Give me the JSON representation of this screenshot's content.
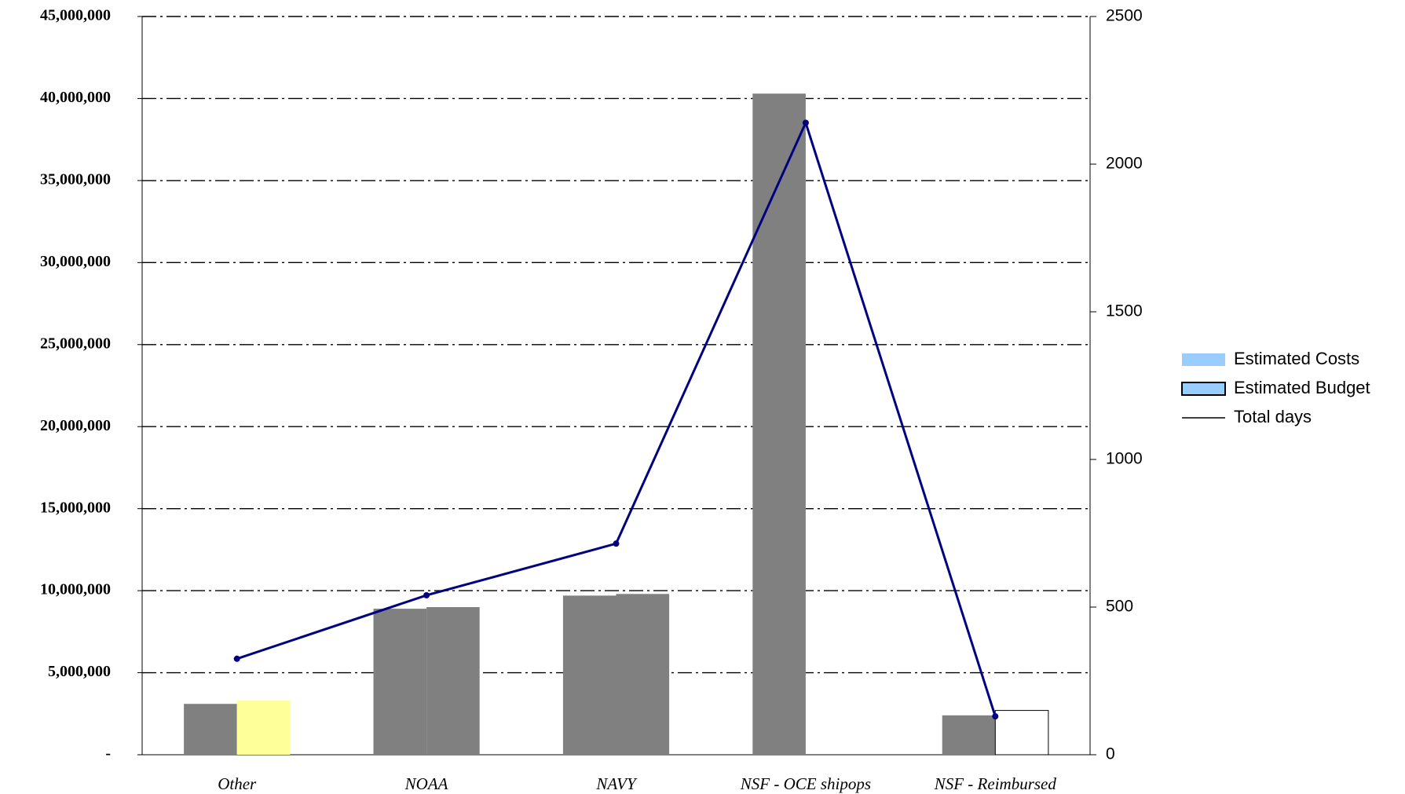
{
  "chart_data": {
    "type": "bar-line",
    "categories": [
      "Other",
      "NOAA",
      "NAVY",
      "NSF - OCE shipops",
      "NSF - Reimbursed"
    ],
    "series": [
      {
        "name": "Estimated Costs",
        "color": "#99ccff",
        "colors": [
          "#808080",
          "#808080",
          "#808080",
          "#808080",
          "#808080"
        ],
        "values": [
          3100000,
          8900000,
          9700000,
          40300000,
          2400000
        ]
      },
      {
        "name": "Estimated Budget",
        "color": "#99ccff",
        "colors": [
          "#ffff99",
          "#808080",
          "#808080",
          "#808080",
          "#ffffff"
        ],
        "values": [
          3300000,
          9000000,
          9800000,
          null,
          2700000
        ]
      },
      {
        "name": "Total days",
        "color": "#000080",
        "axis": "y2",
        "values": [
          325,
          540,
          715,
          2140,
          130
        ]
      }
    ],
    "ylim": [
      0,
      45000000
    ],
    "yticks": [
      {
        "value": 0,
        "label": "-"
      },
      {
        "value": 5000000,
        "label": "5,000,000"
      },
      {
        "value": 10000000,
        "label": "10,000,000"
      },
      {
        "value": 15000000,
        "label": "15,000,000"
      },
      {
        "value": 20000000,
        "label": "20,000,000"
      },
      {
        "value": 25000000,
        "label": "25,000,000"
      },
      {
        "value": 30000000,
        "label": "30,000,000"
      },
      {
        "value": 35000000,
        "label": "35,000,000"
      },
      {
        "value": 40000000,
        "label": "40,000,000"
      },
      {
        "value": 45000000,
        "label": "45,000,000"
      }
    ],
    "y2lim": [
      0,
      2500
    ],
    "y2ticks": [
      0,
      500,
      1000,
      1500,
      2000,
      2500
    ],
    "grid": true,
    "legend": "right"
  }
}
